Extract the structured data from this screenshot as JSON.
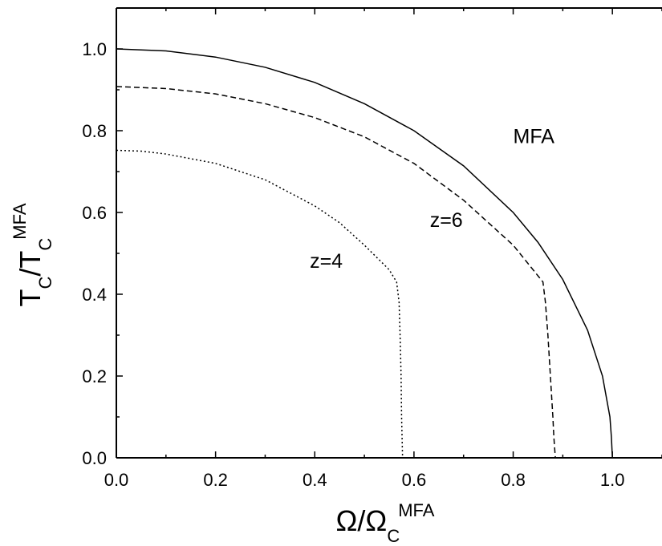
{
  "chart_data": {
    "type": "line",
    "title": "",
    "xlabel": {
      "base": "Ω/Ω",
      "sub": "C",
      "sup": "MFA"
    },
    "ylabel": {
      "base": "T",
      "sub": "C",
      "sep": "/T",
      "sub2": "C",
      "sup": "MFA"
    },
    "xlim": [
      0.0,
      1.1
    ],
    "ylim": [
      0.0,
      1.1
    ],
    "x_ticks": [
      0.0,
      0.2,
      0.4,
      0.6,
      0.8,
      1.0
    ],
    "y_ticks": [
      0.0,
      0.2,
      0.4,
      0.6,
      0.8,
      1.0
    ],
    "x_tick_labels": [
      "0.0",
      "0.2",
      "0.4",
      "0.6",
      "0.8",
      "1.0"
    ],
    "y_tick_labels": [
      "0.0",
      "0.2",
      "0.4",
      "0.6",
      "0.8",
      "1.0"
    ],
    "grid": false,
    "series": [
      {
        "name": "MFA",
        "style": "solid",
        "points": [
          [
            0.0,
            1.0
          ],
          [
            0.1,
            0.995
          ],
          [
            0.2,
            0.98
          ],
          [
            0.3,
            0.955
          ],
          [
            0.4,
            0.918
          ],
          [
            0.5,
            0.866
          ],
          [
            0.6,
            0.8
          ],
          [
            0.7,
            0.714
          ],
          [
            0.8,
            0.6
          ],
          [
            0.85,
            0.527
          ],
          [
            0.9,
            0.436
          ],
          [
            0.95,
            0.312
          ],
          [
            0.98,
            0.2
          ],
          [
            0.995,
            0.1
          ],
          [
            0.998,
            0.05
          ],
          [
            1.0,
            0.0
          ]
        ]
      },
      {
        "name": "z=6",
        "style": "dashed",
        "points": [
          [
            0.0,
            0.908
          ],
          [
            0.1,
            0.903
          ],
          [
            0.2,
            0.89
          ],
          [
            0.3,
            0.866
          ],
          [
            0.4,
            0.832
          ],
          [
            0.5,
            0.785
          ],
          [
            0.6,
            0.72
          ],
          [
            0.7,
            0.63
          ],
          [
            0.8,
            0.52
          ],
          [
            0.86,
            0.43
          ],
          [
            0.865,
            0.38
          ],
          [
            0.87,
            0.3
          ],
          [
            0.875,
            0.2
          ],
          [
            0.88,
            0.1
          ],
          [
            0.882,
            0.05
          ],
          [
            0.885,
            0.0
          ]
        ]
      },
      {
        "name": "z=4",
        "style": "dotted",
        "points": [
          [
            0.0,
            0.752
          ],
          [
            0.05,
            0.75
          ],
          [
            0.1,
            0.743
          ],
          [
            0.2,
            0.72
          ],
          [
            0.3,
            0.68
          ],
          [
            0.4,
            0.616
          ],
          [
            0.45,
            0.575
          ],
          [
            0.5,
            0.52
          ],
          [
            0.55,
            0.46
          ],
          [
            0.565,
            0.43
          ],
          [
            0.57,
            0.38
          ],
          [
            0.572,
            0.3
          ],
          [
            0.574,
            0.2
          ],
          [
            0.575,
            0.1
          ],
          [
            0.577,
            0.0
          ]
        ]
      }
    ],
    "annotations": [
      {
        "text": "MFA",
        "x": 0.8,
        "y": 0.77
      },
      {
        "text": "z=6",
        "x": 0.632,
        "y": 0.565
      },
      {
        "text": "z=4",
        "x": 0.39,
        "y": 0.465
      }
    ]
  }
}
